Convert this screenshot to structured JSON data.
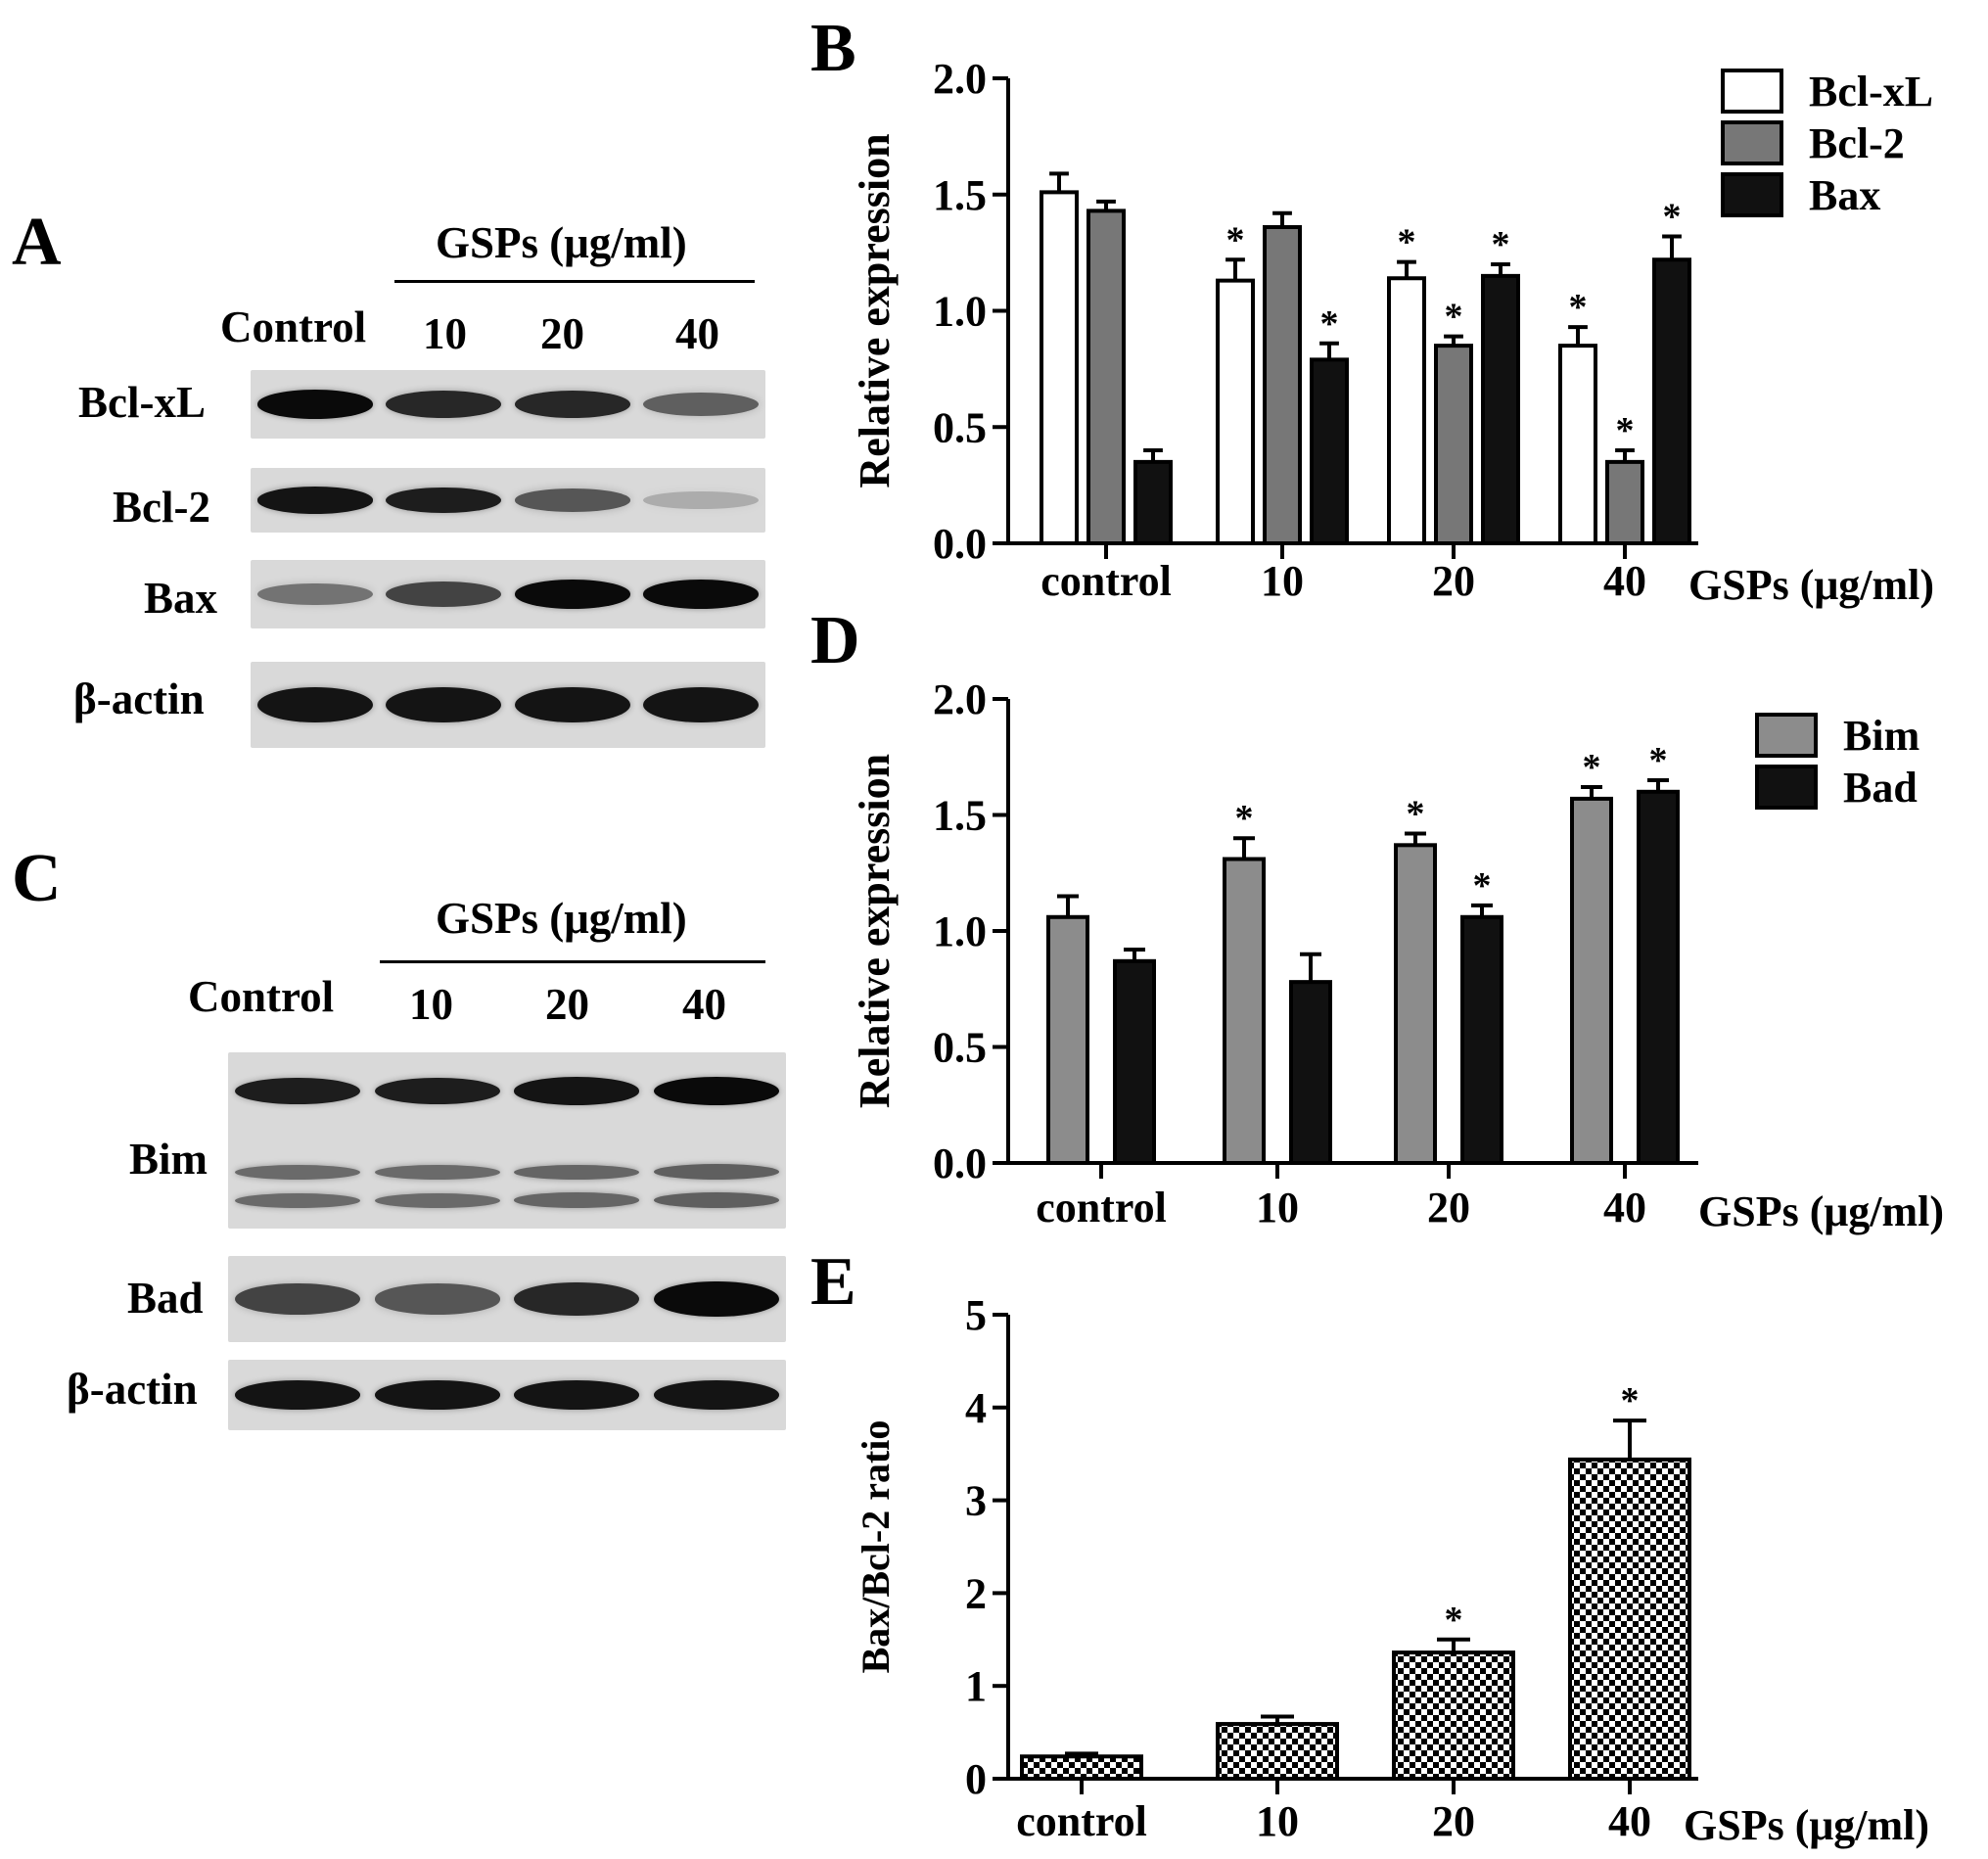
{
  "panels": {
    "A": "A",
    "B": "B",
    "C": "C",
    "D": "D",
    "E": "E"
  },
  "western_A": {
    "group_label": "GSPs (μg/ml)",
    "control_label": "Control",
    "doses": [
      "10",
      "20",
      "40"
    ],
    "rows": [
      {
        "label": "Bcl-xL",
        "intensity": [
          1.0,
          0.85,
          0.85,
          0.55
        ]
      },
      {
        "label": "Bcl-2",
        "intensity": [
          0.95,
          0.9,
          0.6,
          0.15
        ]
      },
      {
        "label": "Bax",
        "intensity": [
          0.45,
          0.7,
          1.0,
          1.0
        ]
      },
      {
        "label": "β-actin",
        "intensity": [
          0.95,
          0.95,
          0.95,
          0.95
        ]
      }
    ]
  },
  "western_C": {
    "group_label": "GSPs (μg/ml)",
    "control_label": "Control",
    "doses": [
      "10",
      "20",
      "40"
    ],
    "rows": [
      {
        "label": "Bim",
        "intensity": [
          0.9,
          0.9,
          0.95,
          1.0
        ]
      },
      {
        "label": "Bad",
        "intensity": [
          0.7,
          0.6,
          0.85,
          1.0
        ]
      },
      {
        "label": "β-actin",
        "intensity": [
          0.95,
          0.95,
          0.95,
          0.95
        ]
      }
    ]
  },
  "chart_data": [
    {
      "id": "B",
      "type": "bar",
      "categories": [
        "control",
        "10",
        "20",
        "40"
      ],
      "xlabel": "GSPs (μg/ml)",
      "ylabel": "Relative expression",
      "ylim": [
        0,
        2.0
      ],
      "yticks": [
        "0.0",
        "0.5",
        "1.0",
        "1.5",
        "2.0"
      ],
      "legend_position": "top-right",
      "series": [
        {
          "name": "Bcl-xL",
          "values": [
            1.51,
            1.13,
            1.14,
            0.85
          ],
          "errors": [
            0.08,
            0.09,
            0.07,
            0.08
          ],
          "significant": [
            false,
            true,
            true,
            true
          ],
          "fill": "#ffffff"
        },
        {
          "name": "Bcl-2",
          "values": [
            1.43,
            1.36,
            0.85,
            0.35
          ],
          "errors": [
            0.04,
            0.06,
            0.04,
            0.05
          ],
          "significant": [
            false,
            false,
            true,
            true
          ],
          "fill": "#777777"
        },
        {
          "name": "Bax",
          "values": [
            0.35,
            0.79,
            1.15,
            1.22
          ],
          "errors": [
            0.05,
            0.07,
            0.05,
            0.1
          ],
          "significant": [
            false,
            true,
            true,
            true
          ],
          "fill": "#111111"
        }
      ]
    },
    {
      "id": "D",
      "type": "bar",
      "categories": [
        "control",
        "10",
        "20",
        "40"
      ],
      "xlabel": "GSPs (μg/ml)",
      "ylabel": "Relative expression",
      "ylim": [
        0,
        2.0
      ],
      "yticks": [
        "0.0",
        "0.5",
        "1.0",
        "1.5",
        "2.0"
      ],
      "legend_position": "top-right",
      "series": [
        {
          "name": "Bim",
          "values": [
            1.06,
            1.31,
            1.37,
            1.57
          ],
          "errors": [
            0.09,
            0.09,
            0.05,
            0.05
          ],
          "significant": [
            false,
            true,
            true,
            true
          ],
          "fill": "#8c8c8c"
        },
        {
          "name": "Bad",
          "values": [
            0.87,
            0.78,
            1.06,
            1.6
          ],
          "errors": [
            0.05,
            0.12,
            0.05,
            0.05
          ],
          "significant": [
            false,
            false,
            true,
            true
          ],
          "fill": "#111111"
        }
      ]
    },
    {
      "id": "E",
      "type": "bar",
      "categories": [
        "control",
        "10",
        "20",
        "40"
      ],
      "xlabel": "GSPs (μg/ml)",
      "ylabel": "Bax/Bcl-2 ratio",
      "ylim": [
        0,
        5
      ],
      "yticks": [
        "0",
        "1",
        "2",
        "3",
        "4",
        "5"
      ],
      "series": [
        {
          "values": [
            0.24,
            0.59,
            1.36,
            3.44
          ],
          "errors": [
            0.03,
            0.08,
            0.14,
            0.42
          ],
          "significant": [
            false,
            false,
            true,
            true
          ],
          "pattern": "checkerboard"
        }
      ]
    }
  ],
  "significance_marker": "*"
}
